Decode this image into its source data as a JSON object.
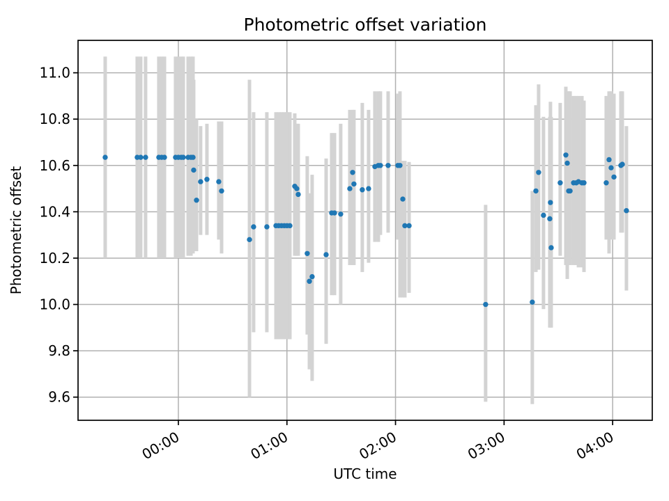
{
  "chart_data": {
    "type": "scatter",
    "title": "Photometric offset variation",
    "xlabel": "UTC time",
    "ylabel": "Photometric offset",
    "grid": true,
    "legend": "none",
    "point_color": "#1f77b4",
    "errorbar_color": "#d3d3d3",
    "grid_color": "#b0b0b0",
    "spine_color": "#000000",
    "xlim_hours": [
      -0.924,
      4.365
    ],
    "ylim": [
      9.5,
      11.14
    ],
    "x_ticks": [
      {
        "t": 0,
        "label": "00:00"
      },
      {
        "t": 1,
        "label": "01:00"
      },
      {
        "t": 2,
        "label": "02:00"
      },
      {
        "t": 3,
        "label": "03:00"
      },
      {
        "t": 4,
        "label": "04:00"
      }
    ],
    "y_ticks": [
      {
        "v": 9.6,
        "label": "9.6"
      },
      {
        "v": 9.8,
        "label": "9.8"
      },
      {
        "v": 10.0,
        "label": "10.0"
      },
      {
        "v": 10.2,
        "label": "10.2"
      },
      {
        "v": 10.4,
        "label": "10.4"
      },
      {
        "v": 10.6,
        "label": "10.6"
      },
      {
        "v": 10.8,
        "label": "10.8"
      },
      {
        "v": 11.0,
        "label": "11.0"
      }
    ],
    "points_format": [
      "t_hours_from_00:00",
      "offset",
      "err_low",
      "err_high"
    ],
    "points": [
      [
        -0.674,
        10.635,
        10.2,
        11.07
      ],
      [
        -0.379,
        10.635,
        10.2,
        11.07
      ],
      [
        -0.347,
        10.635,
        10.2,
        11.07
      ],
      [
        -0.302,
        10.635,
        10.2,
        11.07
      ],
      [
        -0.18,
        10.635,
        10.2,
        11.07
      ],
      [
        -0.154,
        10.635,
        10.2,
        11.07
      ],
      [
        -0.128,
        10.635,
        10.2,
        11.07
      ],
      [
        -0.026,
        10.635,
        10.2,
        11.07
      ],
      [
        0.0,
        10.635,
        10.2,
        11.07
      ],
      [
        0.026,
        10.635,
        10.2,
        11.07
      ],
      [
        0.045,
        10.635,
        10.2,
        11.07
      ],
      [
        0.09,
        10.635,
        10.21,
        11.07
      ],
      [
        0.116,
        10.635,
        10.21,
        11.07
      ],
      [
        0.135,
        10.635,
        10.22,
        11.07
      ],
      [
        0.141,
        10.58,
        10.23,
        10.97
      ],
      [
        0.167,
        10.45,
        10.23,
        10.8
      ],
      [
        0.205,
        10.53,
        10.3,
        10.77
      ],
      [
        0.263,
        10.54,
        10.3,
        10.78
      ],
      [
        0.372,
        10.53,
        10.28,
        10.79
      ],
      [
        0.398,
        10.49,
        10.22,
        10.79
      ],
      [
        0.655,
        10.28,
        9.6,
        10.97
      ],
      [
        0.693,
        10.335,
        9.88,
        10.83
      ],
      [
        0.815,
        10.335,
        9.88,
        10.83
      ],
      [
        0.899,
        10.34,
        9.85,
        10.83
      ],
      [
        0.924,
        10.34,
        9.85,
        10.83
      ],
      [
        0.95,
        10.34,
        9.85,
        10.83
      ],
      [
        0.976,
        10.34,
        9.85,
        10.83
      ],
      [
        1.001,
        10.34,
        9.85,
        10.83
      ],
      [
        1.027,
        10.34,
        9.85,
        10.83
      ],
      [
        1.072,
        10.51,
        10.21,
        10.825
      ],
      [
        1.091,
        10.5,
        10.21,
        10.78
      ],
      [
        1.104,
        10.475,
        10.21,
        10.78
      ],
      [
        1.187,
        10.22,
        9.87,
        10.64
      ],
      [
        1.207,
        10.1,
        9.72,
        10.48
      ],
      [
        1.232,
        10.12,
        9.67,
        10.56
      ],
      [
        1.361,
        10.215,
        9.83,
        10.63
      ],
      [
        1.412,
        10.395,
        10.04,
        10.74
      ],
      [
        1.438,
        10.395,
        10.04,
        10.74
      ],
      [
        1.495,
        10.39,
        10.0,
        10.78
      ],
      [
        1.579,
        10.5,
        10.17,
        10.84
      ],
      [
        1.605,
        10.57,
        10.17,
        10.84
      ],
      [
        1.617,
        10.52,
        10.17,
        10.84
      ],
      [
        1.694,
        10.495,
        10.14,
        10.87
      ],
      [
        1.752,
        10.5,
        10.18,
        10.84
      ],
      [
        1.81,
        10.595,
        10.27,
        10.92
      ],
      [
        1.842,
        10.6,
        10.27,
        10.92
      ],
      [
        1.861,
        10.6,
        10.3,
        10.92
      ],
      [
        1.932,
        10.6,
        10.31,
        10.92
      ],
      [
        2.022,
        10.6,
        10.28,
        10.91
      ],
      [
        2.041,
        10.6,
        10.03,
        10.92
      ],
      [
        2.067,
        10.455,
        10.03,
        10.62
      ],
      [
        2.086,
        10.34,
        10.03,
        10.62
      ],
      [
        2.125,
        10.34,
        10.05,
        10.615
      ],
      [
        2.83,
        10.0,
        9.58,
        10.43
      ],
      [
        3.26,
        10.01,
        9.57,
        10.49
      ],
      [
        3.293,
        10.49,
        10.14,
        10.86
      ],
      [
        3.318,
        10.57,
        10.15,
        10.95
      ],
      [
        3.363,
        10.385,
        9.98,
        10.81
      ],
      [
        3.421,
        10.37,
        9.9,
        10.81
      ],
      [
        3.427,
        10.44,
        9.97,
        10.875
      ],
      [
        3.434,
        10.245,
        9.9,
        10.81
      ],
      [
        3.517,
        10.525,
        10.21,
        10.87
      ],
      [
        3.569,
        10.645,
        10.17,
        10.94
      ],
      [
        3.582,
        10.61,
        10.11,
        10.92
      ],
      [
        3.595,
        10.49,
        10.17,
        10.92
      ],
      [
        3.608,
        10.49,
        10.17,
        10.92
      ],
      [
        3.64,
        10.525,
        10.17,
        10.9
      ],
      [
        3.665,
        10.525,
        10.17,
        10.9
      ],
      [
        3.685,
        10.53,
        10.16,
        10.9
      ],
      [
        3.717,
        10.525,
        10.16,
        10.9
      ],
      [
        3.736,
        10.525,
        10.14,
        10.88
      ],
      [
        3.941,
        10.525,
        10.28,
        10.9
      ],
      [
        3.967,
        10.625,
        10.22,
        10.92
      ],
      [
        3.986,
        10.59,
        10.28,
        10.92
      ],
      [
        4.012,
        10.55,
        10.28,
        10.91
      ],
      [
        4.076,
        10.6,
        10.31,
        10.92
      ],
      [
        4.089,
        10.605,
        10.31,
        10.92
      ],
      [
        4.127,
        10.405,
        10.06,
        10.77
      ]
    ]
  }
}
